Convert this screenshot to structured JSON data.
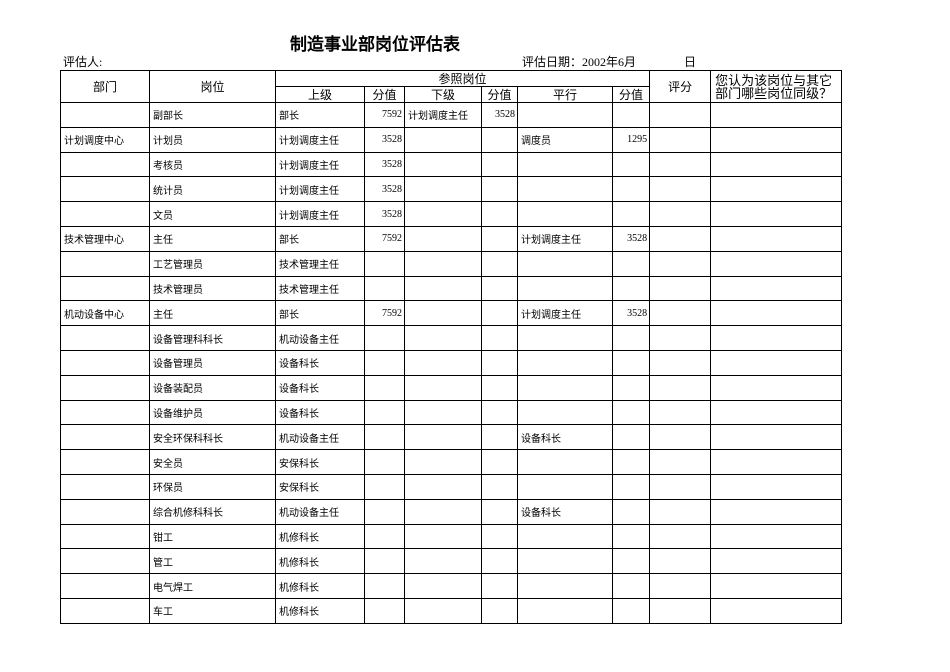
{
  "title": "制造事业部岗位评估表",
  "evaluator_label": "评估人:",
  "date_label": "评估日期：2002年6月",
  "day_label": "日",
  "table": {
    "header": {
      "dept": "部门",
      "position": "岗位",
      "reference": "参照岗位",
      "sub": [
        "上级",
        "分值",
        "下级",
        "分值",
        "平行",
        "分值"
      ],
      "score": "评分",
      "question": "您认为该岗位与其它部门哪些岗位同级？"
    },
    "rows": [
      [
        null,
        "副部长",
        "部长",
        7592,
        "计划调度主任",
        3528,
        null,
        null,
        null,
        null
      ],
      [
        "计划调度中心",
        "计划员",
        "计划调度主任",
        3528,
        null,
        null,
        "调度员",
        1295,
        null,
        null
      ],
      [
        null,
        "考核员",
        "计划调度主任",
        3528,
        null,
        null,
        null,
        null,
        null,
        null
      ],
      [
        null,
        "统计员",
        "计划调度主任",
        3528,
        null,
        null,
        null,
        null,
        null,
        null
      ],
      [
        null,
        "文员",
        "计划调度主任",
        3528,
        null,
        null,
        null,
        null,
        null,
        null
      ],
      [
        "技术管理中心",
        "主任",
        "部长",
        7592,
        null,
        null,
        "计划调度主任",
        3528,
        null,
        null
      ],
      [
        null,
        "工艺管理员",
        "技术管理主任",
        null,
        null,
        null,
        null,
        null,
        null,
        null
      ],
      [
        null,
        "技术管理员",
        "技术管理主任",
        null,
        null,
        null,
        null,
        null,
        null,
        null
      ],
      [
        "机动设备中心",
        "主任",
        "部长",
        7592,
        null,
        null,
        "计划调度主任",
        3528,
        null,
        null
      ],
      [
        null,
        "设备管理科科长",
        "机动设备主任",
        null,
        null,
        null,
        null,
        null,
        null,
        null
      ],
      [
        null,
        "设备管理员",
        "设备科长",
        null,
        null,
        null,
        null,
        null,
        null,
        null
      ],
      [
        null,
        "设备装配员",
        "设备科长",
        null,
        null,
        null,
        null,
        null,
        null,
        null
      ],
      [
        null,
        "设备维护员",
        "设备科长",
        null,
        null,
        null,
        null,
        null,
        null,
        null
      ],
      [
        null,
        "安全环保科科长",
        "机动设备主任",
        null,
        null,
        null,
        "设备科长",
        null,
        null,
        null
      ],
      [
        null,
        "安全员",
        "安保科长",
        null,
        null,
        null,
        null,
        null,
        null,
        null
      ],
      [
        null,
        "环保员",
        "安保科长",
        null,
        null,
        null,
        null,
        null,
        null,
        null
      ],
      [
        null,
        "综合机修科科长",
        "机动设备主任",
        null,
        null,
        null,
        "设备科长",
        null,
        null,
        null
      ],
      [
        null,
        "钳工",
        "机修科长",
        null,
        null,
        null,
        null,
        null,
        null,
        null
      ],
      [
        null,
        "管工",
        "机修科长",
        null,
        null,
        null,
        null,
        null,
        null,
        null
      ],
      [
        null,
        "电气焊工",
        "机修科长",
        null,
        null,
        null,
        null,
        null,
        null,
        null
      ],
      [
        null,
        "车工",
        "机修科长",
        null,
        null,
        null,
        null,
        null,
        null,
        null
      ]
    ]
  }
}
